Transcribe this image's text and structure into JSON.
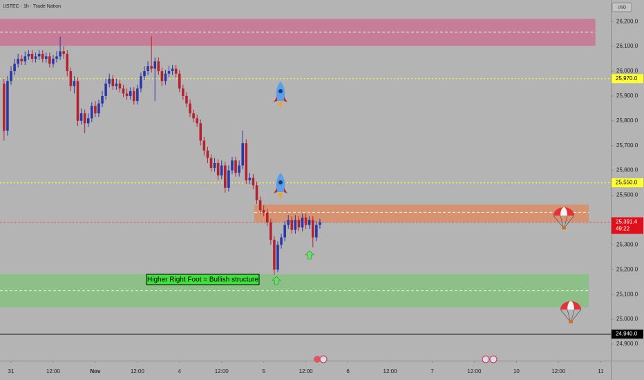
{
  "chart_data": {
    "type": "candlestick",
    "title": "USTEC · 1h · Trade Nation",
    "currency": "USD",
    "up_color": "#2b36a8",
    "down_color": "#b3222f",
    "x": [
      -2,
      -1,
      0,
      1,
      2,
      3,
      4,
      5,
      6,
      7,
      8,
      9,
      10,
      11,
      12,
      13,
      14,
      15,
      16,
      17,
      18,
      19,
      20,
      21,
      22,
      23,
      24,
      25,
      26,
      27,
      28,
      29,
      30,
      31,
      32,
      33,
      34,
      35,
      36,
      37,
      38,
      39,
      40,
      41,
      42,
      43,
      44,
      45,
      46,
      47,
      48,
      49,
      50,
      51,
      52,
      53,
      54,
      55,
      56,
      57,
      58,
      59,
      60,
      61,
      62,
      63,
      64,
      65,
      66,
      67,
      68,
      69,
      70,
      71,
      72,
      73,
      74,
      75,
      76,
      77,
      78,
      79,
      80,
      81,
      82,
      83,
      84,
      85,
      86,
      87,
      88
    ],
    "open": [
      25950,
      25760,
      25960,
      26000,
      26030,
      26050,
      26040,
      26060,
      26070,
      26050,
      26060,
      26070,
      26050,
      26060,
      26030,
      26050,
      26060,
      26080,
      26070,
      26000,
      25940,
      25960,
      25800,
      25830,
      25790,
      25810,
      25860,
      25830,
      25870,
      25900,
      25950,
      25970,
      25940,
      25950,
      25930,
      25910,
      25900,
      25920,
      25880,
      25930,
      25980,
      26000,
      26020,
      26010,
      26040,
      26000,
      25960,
      25990,
      26000,
      26010,
      25990,
      25930,
      25900,
      25870,
      25830,
      25810,
      25790,
      25720,
      25680,
      25650,
      25610,
      25630,
      25580,
      25620,
      25530,
      25600,
      25640,
      25590,
      25620,
      25710,
      25560,
      25570,
      25540,
      25480,
      25440,
      25430,
      25390,
      25320,
      25200,
      25300,
      25330,
      25380,
      25400,
      25360,
      25400,
      25370,
      25410,
      25380,
      25400,
      25330,
      25380
    ],
    "high": [
      25970,
      25980,
      26020,
      26050,
      26070,
      26065,
      26080,
      26085,
      26085,
      26075,
      26085,
      26085,
      26075,
      26075,
      26065,
      26080,
      26140,
      26100,
      26085,
      26015,
      25980,
      25975,
      25850,
      25845,
      25830,
      25875,
      25880,
      25885,
      25920,
      25970,
      25990,
      25985,
      25970,
      25965,
      25945,
      25930,
      25935,
      25935,
      25945,
      25995,
      26020,
      26040,
      26140,
      26055,
      26055,
      26015,
      26005,
      26020,
      26025,
      26025,
      26005,
      25945,
      25915,
      25885,
      25845,
      25825,
      25805,
      25735,
      25695,
      25665,
      25650,
      25645,
      25640,
      25635,
      25620,
      25655,
      25655,
      25640,
      25760,
      25725,
      25590,
      25585,
      25555,
      25495,
      25460,
      25445,
      25405,
      25335,
      25315,
      25345,
      25395,
      25420,
      25415,
      25420,
      25415,
      25425,
      25425,
      25415,
      25415,
      25395,
      25405
    ],
    "low": [
      25720,
      25740,
      25945,
      25985,
      26015,
      26025,
      26025,
      26045,
      26035,
      26035,
      26045,
      26035,
      26035,
      26015,
      26015,
      26035,
      26045,
      26050,
      25980,
      25920,
      25910,
      25780,
      25785,
      25750,
      25775,
      25795,
      25815,
      25815,
      25855,
      25885,
      25935,
      25925,
      25925,
      25915,
      25895,
      25885,
      25885,
      25865,
      25865,
      25915,
      25965,
      25985,
      25995,
      25880,
      25985,
      25940,
      25945,
      25975,
      25985,
      25975,
      25915,
      25885,
      25855,
      25815,
      25795,
      25775,
      25700,
      25660,
      25630,
      25595,
      25595,
      25560,
      25565,
      25510,
      25515,
      25585,
      25575,
      25575,
      25605,
      25545,
      25545,
      25525,
      25465,
      25425,
      25415,
      25375,
      25300,
      25180,
      25190,
      25285,
      25315,
      25365,
      25345,
      25345,
      25355,
      25355,
      25365,
      25365,
      25290,
      25315,
      25365
    ],
    "close": [
      25760,
      25960,
      26000,
      26030,
      26050,
      26040,
      26060,
      26070,
      26050,
      26060,
      26070,
      26050,
      26060,
      26030,
      26050,
      26060,
      26080,
      26070,
      26000,
      25940,
      25960,
      25800,
      25830,
      25790,
      25810,
      25860,
      25830,
      25870,
      25900,
      25950,
      25970,
      25940,
      25950,
      25930,
      25910,
      25900,
      25920,
      25880,
      25930,
      25980,
      26000,
      26020,
      26010,
      26040,
      26000,
      25960,
      25990,
      26000,
      26010,
      25990,
      25930,
      25900,
      25870,
      25830,
      25810,
      25790,
      25720,
      25680,
      25650,
      25610,
      25630,
      25580,
      25620,
      25530,
      25600,
      25640,
      25590,
      25620,
      25710,
      25560,
      25570,
      25540,
      25480,
      25440,
      25430,
      25390,
      25320,
      25200,
      25300,
      25330,
      25380,
      25400,
      25360,
      25400,
      25370,
      25410,
      25380,
      25400,
      25330,
      25380,
      25391.4
    ],
    "xlim": [
      -3.15,
      170.9
    ],
    "xticks": [
      {
        "value": 0,
        "label": "31"
      },
      {
        "value": 12,
        "label": "12:00"
      },
      {
        "value": 24,
        "label": "Nov"
      },
      {
        "value": 36,
        "label": "12:00"
      },
      {
        "value": 48,
        "label": "4"
      },
      {
        "value": 60,
        "label": "12:00"
      },
      {
        "value": 72,
        "label": "5"
      },
      {
        "value": 84,
        "label": "12:00"
      },
      {
        "value": 96,
        "label": "6"
      },
      {
        "value": 108,
        "label": "12:00"
      },
      {
        "value": 120,
        "label": "7"
      },
      {
        "value": 132,
        "label": "12:00"
      },
      {
        "value": 144,
        "label": "10"
      },
      {
        "value": 156,
        "label": "12:00"
      },
      {
        "value": 168,
        "label": "11"
      }
    ],
    "ylim": [
      24833,
      26287
    ],
    "yticks": [
      {
        "value": 24900,
        "label": "24,900.0"
      },
      {
        "value": 25000,
        "label": "25,000.0"
      },
      {
        "value": 25100,
        "label": "25,100.0"
      },
      {
        "value": 25200,
        "label": "25,200.0"
      },
      {
        "value": 25300,
        "label": "25,300.0"
      },
      {
        "value": 25500,
        "label": "25,500.0"
      },
      {
        "value": 25600,
        "label": "25,600.0"
      },
      {
        "value": 25700,
        "label": "25,700.0"
      },
      {
        "value": 25800,
        "label": "25,800.0"
      },
      {
        "value": 25900,
        "label": "25,900.0"
      },
      {
        "value": 26000,
        "label": "26,000.0"
      },
      {
        "value": 26100,
        "label": "26,100.0"
      },
      {
        "value": 26200,
        "label": "26,200.0"
      }
    ],
    "zones": [
      {
        "low": 26102,
        "high": 26211,
        "mid": 26158,
        "x_from": -3.15,
        "x_to": 166.5,
        "color": "rgba(214,80,130,0.55)"
      },
      {
        "low": 25392,
        "high": 25462,
        "mid": 25431,
        "x_from": 69.3,
        "x_to": 164.6,
        "color": "rgba(240,120,60,0.55)"
      },
      {
        "low": 25048,
        "high": 25182,
        "mid": 25115,
        "x_from": -3.15,
        "x_to": 164.6,
        "color": "rgba(110,200,100,0.55)"
      }
    ],
    "levels": [
      {
        "value": 25970,
        "label": "25,970.0",
        "color": "#ffff33",
        "style": "dotted"
      },
      {
        "value": 25550,
        "label": "25,550.0",
        "color": "#ffff33",
        "style": "dotted"
      },
      {
        "value": 24940,
        "label": "24,940.0",
        "color": "#000000",
        "style": "solid"
      }
    ],
    "last_price": {
      "value": 25391.4,
      "label": "25,391.4",
      "countdown": "49:22",
      "color": "#e0101a"
    },
    "annotation": "Higher Right Foot = Bullish structure"
  }
}
